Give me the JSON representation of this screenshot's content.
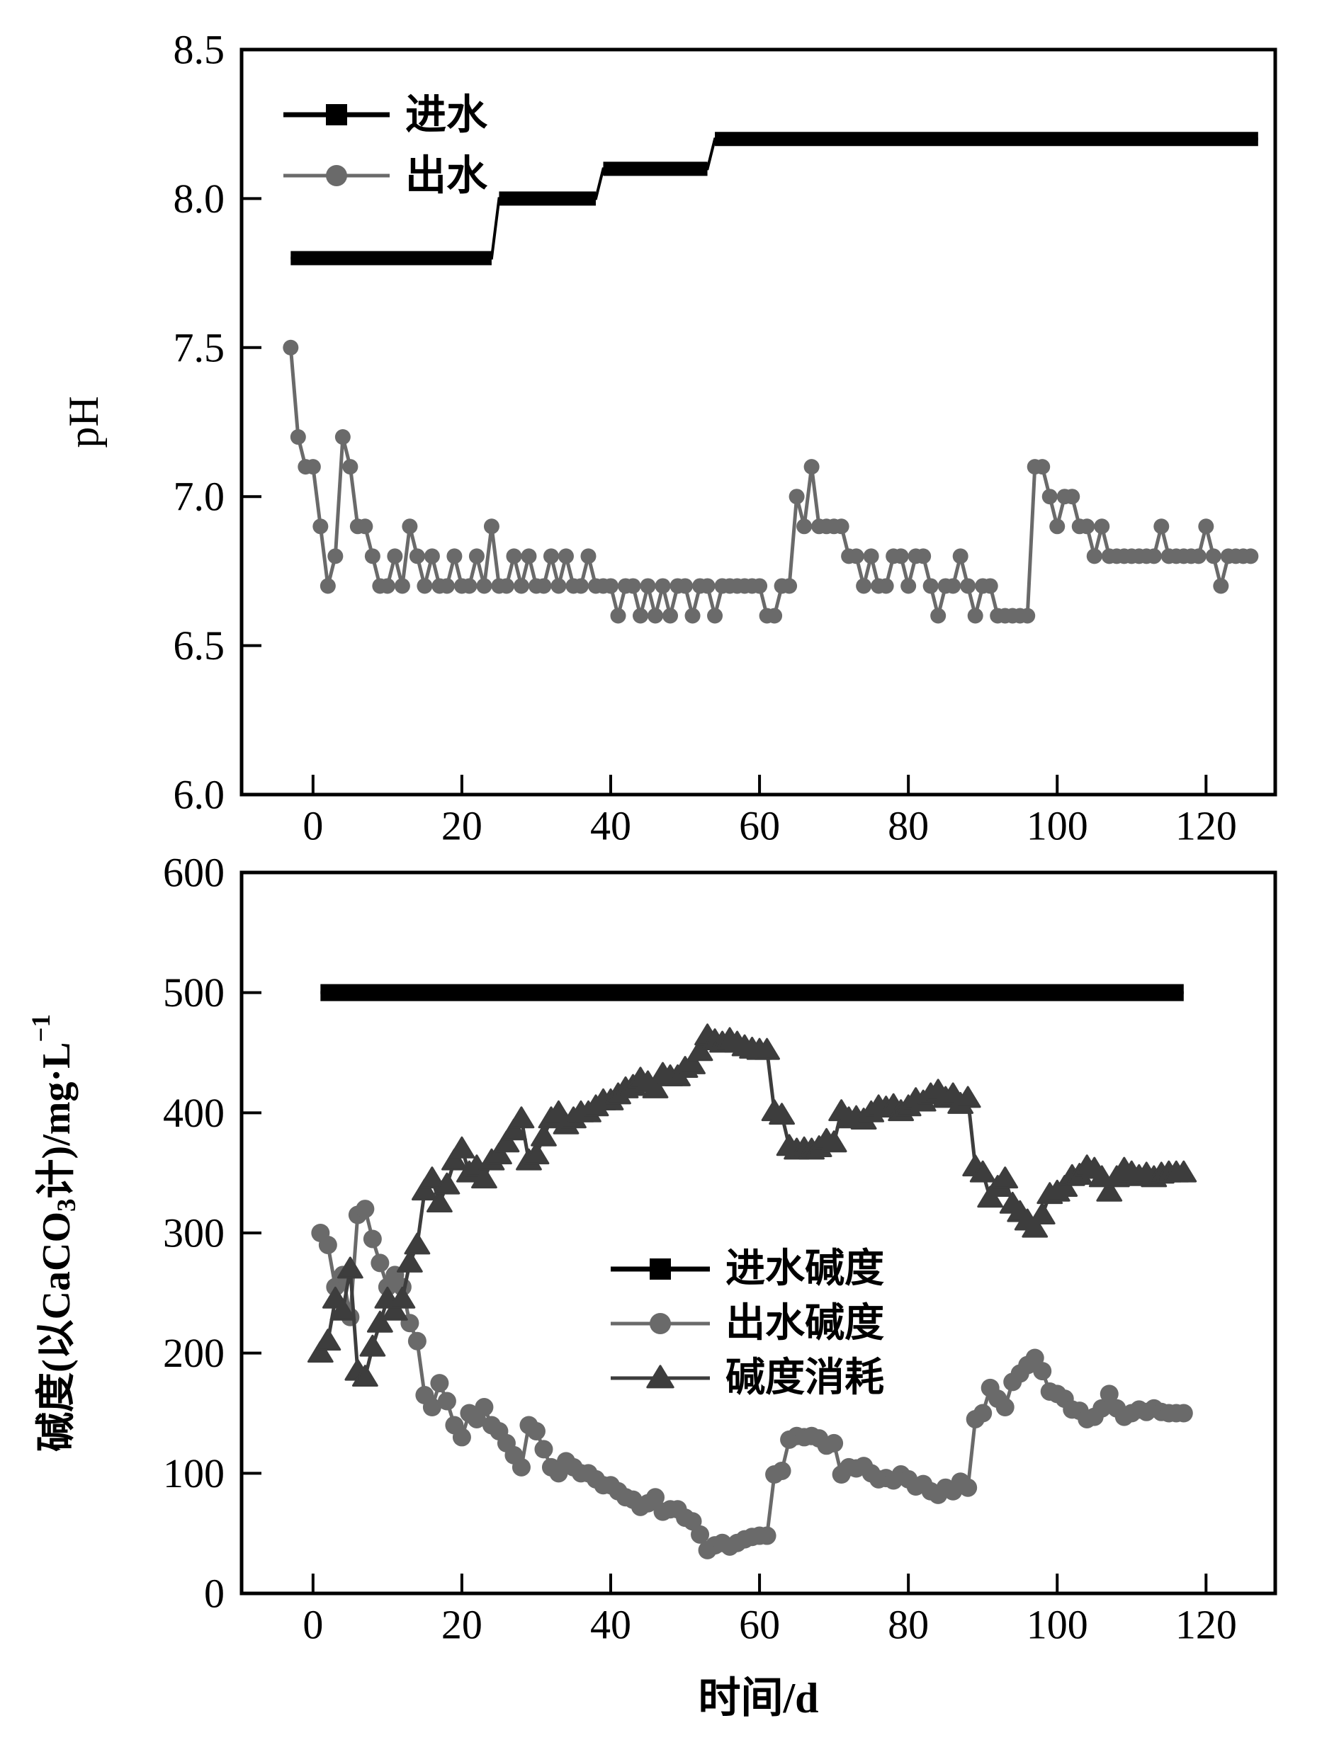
{
  "figure": {
    "description_visible_text_only": "two stacked line charts",
    "colors": {
      "influent_black": "#000000",
      "effluent_gray": "#6a6a6a",
      "consumption_dark": "#3d3d3d",
      "frame": "#000000",
      "background": "#ffffff"
    }
  },
  "chart_data": [
    {
      "id": "ph-chart",
      "type": "line",
      "title": "",
      "ylabel": "pH",
      "ylabel_parts": [
        {
          "t": "pH"
        }
      ],
      "xlabel": "",
      "xlim": [
        -9.6,
        129.3
      ],
      "ylim": [
        6.0,
        8.5
      ],
      "grid": false,
      "legend_position": "upper-left-inside",
      "yticks": [
        {
          "v": 6.0,
          "label": "6.0"
        },
        {
          "v": 6.5,
          "label": "6.5"
        },
        {
          "v": 7.0,
          "label": "7.0"
        },
        {
          "v": 7.5,
          "label": "7.5"
        },
        {
          "v": 8.0,
          "label": "8.0"
        },
        {
          "v": 8.5,
          "label": "8.5"
        }
      ],
      "xticks": [
        {
          "v": 0,
          "label": "0"
        },
        {
          "v": 20,
          "label": "20"
        },
        {
          "v": 40,
          "label": "40"
        },
        {
          "v": 60,
          "label": "60"
        },
        {
          "v": 80,
          "label": "80"
        },
        {
          "v": 100,
          "label": "100"
        },
        {
          "v": 120,
          "label": "120"
        }
      ],
      "legend": [
        {
          "id": "influent",
          "label": "进水",
          "marker": "square",
          "color": "#000000"
        },
        {
          "id": "effluent",
          "label": "出水",
          "marker": "circle",
          "color": "#6a6a6a"
        }
      ],
      "series": [
        {
          "id": "influent",
          "name": "进水",
          "marker": "square",
          "color": "#000000",
          "style": "step-plateaus",
          "plateaus": [
            [
              -3,
              24,
              7.8
            ],
            [
              25,
              38,
              8.0
            ],
            [
              39,
              53,
              8.1
            ],
            [
              54,
              127,
              8.2
            ]
          ]
        },
        {
          "id": "effluent",
          "name": "出水",
          "marker": "circle",
          "color": "#6a6a6a",
          "x_start": -3,
          "x_step": 1,
          "values": [
            7.5,
            7.2,
            7.1,
            7.1,
            6.9,
            6.7,
            6.8,
            7.2,
            7.1,
            6.9,
            6.9,
            6.8,
            6.7,
            6.7,
            6.8,
            6.7,
            6.9,
            6.8,
            6.7,
            6.8,
            6.7,
            6.7,
            6.8,
            6.7,
            6.7,
            6.8,
            6.7,
            6.9,
            6.7,
            6.7,
            6.8,
            6.7,
            6.8,
            6.7,
            6.7,
            6.8,
            6.7,
            6.8,
            6.7,
            6.7,
            6.8,
            6.7,
            6.7,
            6.7,
            6.6,
            6.7,
            6.7,
            6.6,
            6.7,
            6.6,
            6.7,
            6.6,
            6.7,
            6.7,
            6.6,
            6.7,
            6.7,
            6.6,
            6.7,
            6.7,
            6.7,
            6.7,
            6.7,
            6.7,
            6.6,
            6.6,
            6.7,
            6.7,
            7.0,
            6.9,
            7.1,
            6.9,
            6.9,
            6.9,
            6.9,
            6.8,
            6.8,
            6.7,
            6.8,
            6.7,
            6.7,
            6.8,
            6.8,
            6.7,
            6.8,
            6.8,
            6.7,
            6.6,
            6.7,
            6.7,
            6.8,
            6.7,
            6.6,
            6.7,
            6.7,
            6.6,
            6.6,
            6.6,
            6.6,
            6.6,
            7.1,
            7.1,
            7.0,
            6.9,
            7.0,
            7.0,
            6.9,
            6.9,
            6.8,
            6.9,
            6.8,
            6.8,
            6.8,
            6.8,
            6.8,
            6.8,
            6.8,
            6.9,
            6.8,
            6.8,
            6.8,
            6.8,
            6.8,
            6.9,
            6.8,
            6.7,
            6.8,
            6.8,
            6.8,
            6.8
          ]
        }
      ]
    },
    {
      "id": "alkalinity-chart",
      "type": "line",
      "title": "",
      "ylabel": "碱度(以CaCO3计)/mg·L−1",
      "ylabel_parts": [
        {
          "t": "碱度(以CaCO"
        },
        {
          "t": "3",
          "s": "sub"
        },
        {
          "t": "计)/mg·L",
          "s": "n"
        },
        {
          "t": "−1",
          "s": "sup"
        }
      ],
      "xlabel": "时间/d",
      "xlim": [
        -9.6,
        129.3
      ],
      "ylim": [
        0,
        600
      ],
      "grid": false,
      "legend_position": "center-inside",
      "yticks": [
        {
          "v": 0,
          "label": "0"
        },
        {
          "v": 100,
          "label": "100"
        },
        {
          "v": 200,
          "label": "200"
        },
        {
          "v": 300,
          "label": "300"
        },
        {
          "v": 400,
          "label": "400"
        },
        {
          "v": 500,
          "label": "500"
        },
        {
          "v": 600,
          "label": "600"
        }
      ],
      "xticks": [
        {
          "v": 0,
          "label": "0"
        },
        {
          "v": 20,
          "label": "20"
        },
        {
          "v": 40,
          "label": "40"
        },
        {
          "v": 60,
          "label": "60"
        },
        {
          "v": 80,
          "label": "80"
        },
        {
          "v": 100,
          "label": "100"
        },
        {
          "v": 120,
          "label": "120"
        }
      ],
      "legend": [
        {
          "id": "influent-alkalinity",
          "label": "进水碱度",
          "marker": "square",
          "color": "#000000"
        },
        {
          "id": "effluent-alkalinity",
          "label": "出水碱度",
          "marker": "circle",
          "color": "#6a6a6a"
        },
        {
          "id": "alkalinity-consumption",
          "label": "碱度消耗",
          "marker": "triangle",
          "color": "#3d3d3d"
        }
      ],
      "series": [
        {
          "id": "influent-alkalinity",
          "name": "进水碱度",
          "marker": "square",
          "color": "#000000",
          "style": "step-plateaus",
          "plateaus": [
            [
              1,
              117,
              500
            ]
          ]
        },
        {
          "id": "effluent-alkalinity",
          "name": "出水碱度",
          "marker": "circle",
          "color": "#6a6a6a",
          "x_start": 1,
          "x_step": 1,
          "values": [
            300,
            290,
            255,
            265,
            230,
            315,
            320,
            295,
            275,
            255,
            265,
            255,
            225,
            210,
            165,
            155,
            175,
            160,
            140,
            130,
            150,
            145,
            155,
            140,
            135,
            125,
            115,
            105,
            140,
            135,
            120,
            105,
            100,
            110,
            105,
            100,
            100,
            95,
            90,
            90,
            85,
            80,
            78,
            72,
            75,
            80,
            68,
            70,
            70,
            63,
            60,
            49,
            36,
            40,
            42,
            39,
            42,
            45,
            47,
            48,
            48,
            99,
            102,
            128,
            131,
            130,
            131,
            129,
            123,
            125,
            99,
            105,
            104,
            106,
            100,
            95,
            96,
            94,
            99,
            95,
            89,
            91,
            85,
            82,
            88,
            85,
            93,
            88,
            145,
            150,
            171,
            162,
            155,
            176,
            183,
            190,
            196,
            185,
            168,
            166,
            162,
            153,
            152,
            145,
            147,
            154,
            166,
            154,
            147,
            150,
            153,
            151,
            154,
            151,
            150,
            150,
            150
          ]
        },
        {
          "id": "alkalinity-consumption",
          "name": "碱度消耗",
          "marker": "triangle",
          "color": "#3d3d3d",
          "x_start": 1,
          "x_step": 1,
          "values": [
            200,
            210,
            245,
            235,
            270,
            185,
            180,
            205,
            225,
            245,
            235,
            245,
            275,
            290,
            335,
            345,
            325,
            340,
            360,
            370,
            350,
            355,
            345,
            360,
            365,
            375,
            385,
            395,
            360,
            365,
            380,
            395,
            400,
            390,
            395,
            400,
            400,
            405,
            410,
            410,
            415,
            420,
            422,
            428,
            425,
            420,
            432,
            430,
            430,
            437,
            440,
            451,
            464,
            460,
            458,
            461,
            458,
            455,
            453,
            452,
            452,
            401,
            398,
            372,
            369,
            370,
            369,
            371,
            377,
            375,
            401,
            395,
            396,
            394,
            400,
            405,
            404,
            406,
            401,
            405,
            411,
            409,
            415,
            418,
            412,
            415,
            407,
            412,
            355,
            350,
            329,
            338,
            345,
            324,
            317,
            310,
            304,
            315,
            332,
            334,
            338,
            347,
            348,
            355,
            353,
            346,
            334,
            346,
            353,
            350,
            347,
            349,
            346,
            349,
            350,
            350,
            350
          ]
        }
      ]
    }
  ]
}
